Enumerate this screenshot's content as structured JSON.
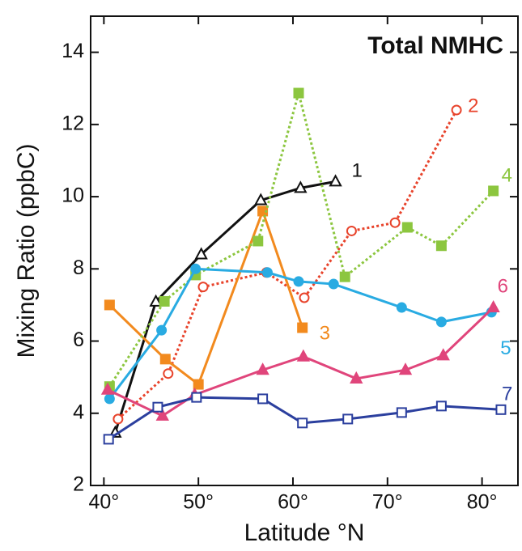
{
  "chart_data": {
    "type": "line",
    "title": "Total NMHC",
    "x_label": "Latitude °N",
    "y_label": "Mixing Ratio (ppbC)",
    "xlim": [
      38.6,
      83.8
    ],
    "ylim": [
      2,
      15
    ],
    "xticks": [
      {
        "value": 40,
        "label": "40°"
      },
      {
        "value": 50,
        "label": "50°"
      },
      {
        "value": 60,
        "label": "60°"
      },
      {
        "value": 70,
        "label": "70°"
      },
      {
        "value": 80,
        "label": "80°"
      }
    ],
    "yticks": [
      2,
      4,
      6,
      8,
      10,
      12,
      14
    ],
    "series": [
      {
        "name": "1",
        "color": "#111111",
        "dash": "solid",
        "marker": "triangle-open",
        "x": [
          41.2,
          45.5,
          50.3,
          56.6,
          60.8,
          64.5
        ],
        "values": [
          3.46,
          7.09,
          8.4,
          9.9,
          10.24,
          10.42
        ]
      },
      {
        "name": "2",
        "color": "#e8432b",
        "dash": "dotted",
        "marker": "circle-open",
        "x": [
          41.5,
          46.8,
          50.5,
          57.2,
          61.2,
          66.2,
          70.8,
          77.3
        ],
        "values": [
          3.84,
          5.1,
          7.5,
          7.9,
          7.2,
          9.05,
          9.28,
          12.4
        ]
      },
      {
        "name": "3",
        "color": "#f28a1e",
        "dash": "solid",
        "marker": "square",
        "x": [
          40.6,
          46.5,
          50.0,
          56.8,
          61.0
        ],
        "values": [
          7.0,
          5.5,
          4.8,
          9.6,
          6.37
        ]
      },
      {
        "name": "4",
        "color": "#8cc63f",
        "dash": "dotted",
        "marker": "square",
        "x": [
          40.6,
          46.4,
          49.7,
          56.3,
          60.6,
          65.5,
          72.1,
          75.7,
          81.2
        ],
        "values": [
          4.74,
          7.1,
          7.83,
          8.77,
          12.87,
          7.78,
          9.15,
          8.64,
          10.16
        ]
      },
      {
        "name": "5",
        "color": "#29abe2",
        "dash": "solid",
        "marker": "circle",
        "x": [
          40.6,
          46.1,
          49.7,
          57.3,
          60.6,
          64.3,
          71.5,
          75.7,
          81.0
        ],
        "values": [
          4.4,
          6.3,
          8.0,
          7.9,
          7.65,
          7.58,
          6.93,
          6.53,
          6.8
        ]
      },
      {
        "name": "6",
        "color": "#e0457b",
        "dash": "solid",
        "marker": "triangle",
        "x": [
          40.4,
          46.2,
          49.6,
          56.8,
          61.1,
          66.7,
          71.9,
          75.9,
          81.2
        ],
        "values": [
          4.65,
          3.93,
          4.51,
          5.2,
          5.57,
          4.96,
          5.2,
          5.6,
          6.93
        ]
      },
      {
        "name": "7",
        "color": "#2b3f9e",
        "dash": "solid",
        "marker": "square-open",
        "x": [
          40.5,
          45.7,
          49.8,
          56.8,
          61.0,
          65.8,
          71.5,
          75.7,
          82.0
        ],
        "values": [
          3.28,
          4.17,
          4.44,
          4.4,
          3.73,
          3.84,
          4.02,
          4.2,
          4.1
        ]
      }
    ]
  }
}
